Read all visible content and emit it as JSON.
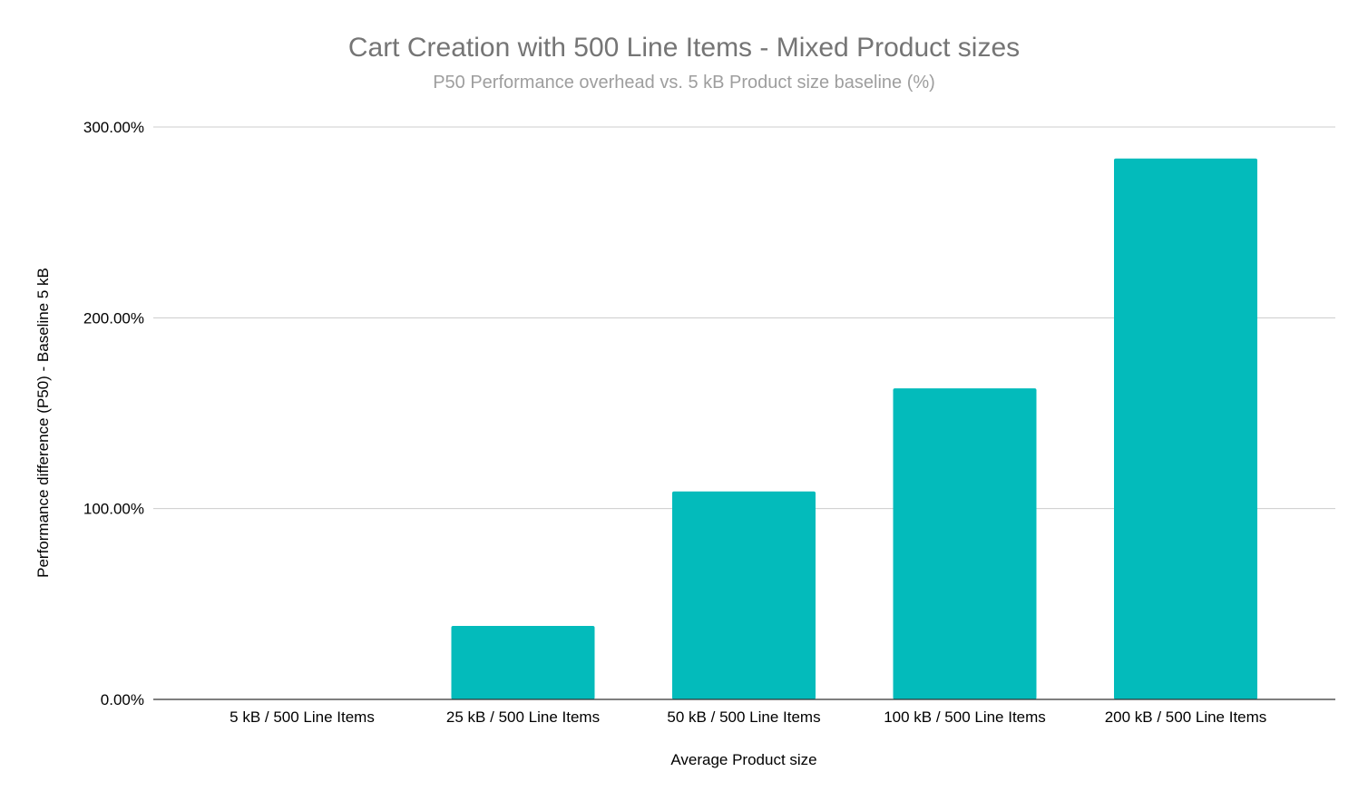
{
  "chart_data": {
    "type": "bar",
    "title": "Cart Creation with 500 Line Items - Mixed Product sizes",
    "subtitle": "P50 Performance overhead vs. 5 kB Product size baseline (%)",
    "xlabel": "Average Product size",
    "ylabel": "Performance difference (P50) - Baseline 5 kB",
    "categories": [
      "5 kB / 500 Line Items",
      "25 kB / 500 Line Items",
      "50 kB / 500 Line Items",
      "100 kB / 500 Line Items",
      "200 kB / 500 Line Items"
    ],
    "values": [
      0,
      38.5,
      109,
      163,
      283.5
    ],
    "ylim": [
      0,
      300
    ],
    "yticks": [
      0,
      100,
      200,
      300
    ],
    "ytick_labels": [
      "0.00%",
      "100.00%",
      "200.00%",
      "300.00%"
    ],
    "grid": true,
    "legend": "none",
    "bar_color": "#03bbbb"
  }
}
